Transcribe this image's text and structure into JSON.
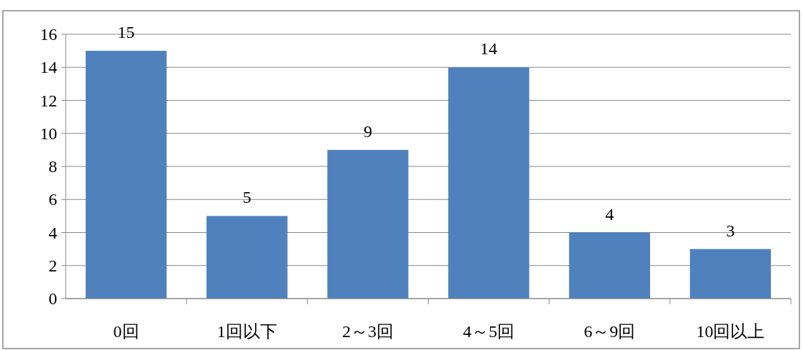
{
  "chart_data": {
    "type": "bar",
    "categories": [
      "0回",
      "1回以下",
      "2～3回",
      "4～5回",
      "6～9回",
      "10回以上"
    ],
    "values": [
      15,
      5,
      9,
      14,
      4,
      3
    ],
    "color": "#4f81bd",
    "ylim": [
      0,
      16
    ],
    "yticks": [
      0,
      2,
      4,
      6,
      8,
      10,
      12,
      14,
      16
    ],
    "grid": "y",
    "data_labels": true
  }
}
